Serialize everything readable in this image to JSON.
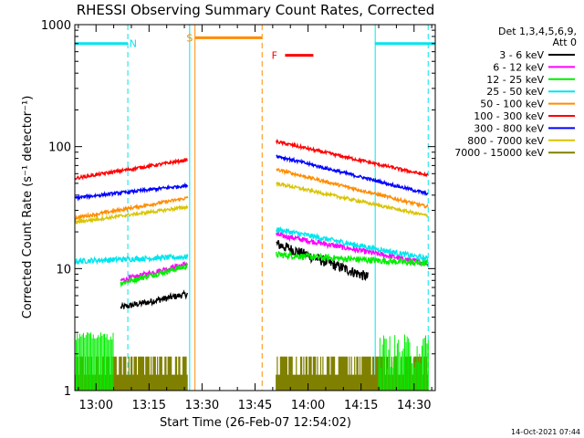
{
  "colors": {
    "background": "#ffffff",
    "axis": "#000000",
    "night_marker": "#00e5ee",
    "saa_marker": "#ff8c00",
    "flare_marker": "#ff0000"
  },
  "footer_timestamp": "14-Oct-2021 07:44",
  "chart_data": {
    "type": "line",
    "title": "RHESSI Observing Summary Count Rates, Corrected",
    "xlabel": "Start Time (26-Feb-07 12:54:02)",
    "ylabel": "Corrected Count Rate (s⁻¹ detector⁻¹)",
    "yscale": "log",
    "ylim": [
      1,
      1000
    ],
    "xlim_minutes": [
      -6,
      96
    ],
    "x_ticks": [
      {
        "t": 0,
        "label": "13:00"
      },
      {
        "t": 15,
        "label": "13:15"
      },
      {
        "t": 30,
        "label": "13:30"
      },
      {
        "t": 45,
        "label": "13:45"
      },
      {
        "t": 60,
        "label": "14:00"
      },
      {
        "t": 75,
        "label": "14:15"
      },
      {
        "t": 90,
        "label": "14:30"
      }
    ],
    "y_ticks": [
      {
        "v": 1,
        "label": "1"
      },
      {
        "v": 10,
        "label": "10"
      },
      {
        "v": 100,
        "label": "100"
      },
      {
        "v": 1000,
        "label": "1000"
      }
    ],
    "legend_header": [
      "Det 1,3,4,5,6,9,",
      "Att 0"
    ],
    "legend_placement": "top-right, outside plot",
    "segments_minutes": [
      [
        7,
        26
      ],
      [
        51,
        94
      ]
    ],
    "series": [
      {
        "name": "3 - 6 keV",
        "color": "#000000",
        "seg1": {
          "from": 7,
          "to": 26,
          "start": 4.8,
          "end": 6.2,
          "noise": 0.06
        },
        "seg2": {
          "from": 51,
          "to": 77,
          "start": 16,
          "end": 8.5,
          "noise": 0.1,
          "end_t": 77
        }
      },
      {
        "name": "6 - 12 keV",
        "color": "#ff00ff",
        "seg1": {
          "from": 7,
          "to": 26,
          "start": 8,
          "end": 11,
          "noise": 0.05
        },
        "seg2": {
          "from": 51,
          "to": 94,
          "start": 19,
          "end": 11,
          "noise": 0.05
        }
      },
      {
        "name": "12 - 25 keV",
        "color": "#00ee00",
        "seg1": {
          "from": 7,
          "to": 26,
          "start": 7.6,
          "end": 10.5,
          "noise": 0.05
        },
        "seg2": {
          "from": 51,
          "to": 94,
          "start": 13,
          "end": 11,
          "noise": 0.06
        }
      },
      {
        "name": "25 - 50 keV",
        "color": "#00e5ee",
        "seg1": {
          "from": -6,
          "to": 26,
          "start": 11.5,
          "end": 12.5,
          "noise": 0.05
        },
        "seg2": {
          "from": 51,
          "to": 94,
          "start": 21,
          "end": 12,
          "noise": 0.05
        }
      },
      {
        "name": "50 - 100 keV",
        "color": "#ff8c00",
        "seg1": {
          "from": -6,
          "to": 26,
          "start": 26,
          "end": 38,
          "noise": 0.03
        },
        "seg2": {
          "from": 51,
          "to": 94,
          "start": 65,
          "end": 32,
          "noise": 0.03
        }
      },
      {
        "name": "100 - 300 keV",
        "color": "#ff0000",
        "seg1": {
          "from": -6,
          "to": 26,
          "start": 55,
          "end": 78,
          "noise": 0.03
        },
        "seg2": {
          "from": 51,
          "to": 94,
          "start": 110,
          "end": 58,
          "noise": 0.03
        }
      },
      {
        "name": "300 - 800 keV",
        "color": "#0000ff",
        "seg1": {
          "from": -6,
          "to": 26,
          "start": 38,
          "end": 48,
          "noise": 0.03
        },
        "seg2": {
          "from": 51,
          "to": 94,
          "start": 84,
          "end": 41,
          "noise": 0.03
        }
      },
      {
        "name": "800 - 7000 keV",
        "color": "#d9c400",
        "seg1": {
          "from": -6,
          "to": 26,
          "start": 24,
          "end": 32,
          "noise": 0.03
        },
        "seg2": {
          "from": 51,
          "to": 94,
          "start": 50,
          "end": 27,
          "noise": 0.03
        }
      },
      {
        "name": "7000 - 15000 keV",
        "color": "#808000",
        "seg1": {
          "from": -6,
          "to": 26,
          "start": 1.5,
          "end": 1.5,
          "noise": 0.0
        },
        "seg2": {
          "from": 51,
          "to": 94,
          "start": 1.5,
          "end": 1.5,
          "noise": 0.0
        }
      }
    ],
    "flag_bars": [
      {
        "label": "N",
        "color": "#00e5ee",
        "y": 700,
        "from": -6,
        "to": 9,
        "label_t": 10.5
      },
      {
        "label": "N",
        "color": "#00e5ee",
        "y": 700,
        "from": 79,
        "to": 96,
        "label_t": null
      },
      {
        "label": "S",
        "color": "#ff8c00",
        "y": 780,
        "from": 28,
        "to": 47,
        "label_t": 26.5
      },
      {
        "label": "F",
        "color": "#ff0000",
        "y": 560,
        "from": 53.5,
        "to": 61.5,
        "label_t": 50.5
      }
    ],
    "vlines": [
      {
        "t": 9,
        "color": "#00e5ee",
        "style": "dashed"
      },
      {
        "t": 26.5,
        "color": "#00e5ee",
        "style": "solid"
      },
      {
        "t": 79,
        "color": "#00e5ee",
        "style": "solid"
      },
      {
        "t": 94,
        "color": "#00e5ee",
        "style": "dashed"
      },
      {
        "t": 28,
        "color": "#ff8c00",
        "style": "solid"
      },
      {
        "t": 47,
        "color": "#ff8c00",
        "style": "dashed"
      }
    ]
  }
}
